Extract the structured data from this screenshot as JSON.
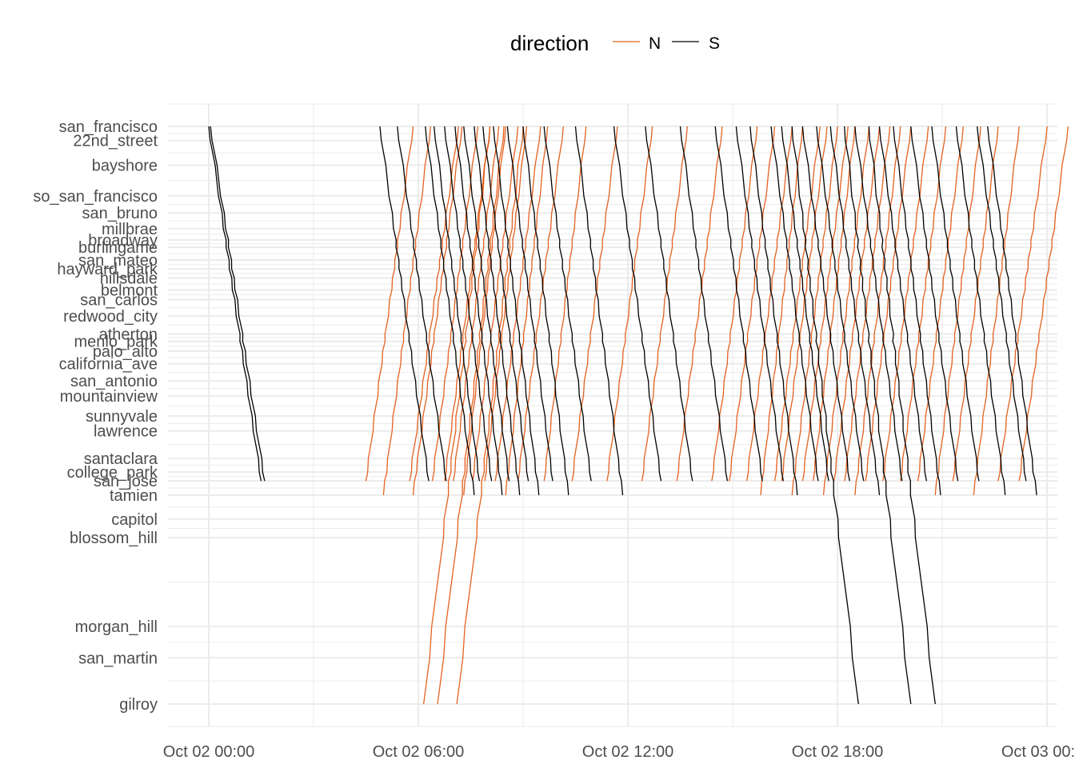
{
  "chart_data": {
    "type": "line",
    "x_ticks": [
      "Oct 02 00:00",
      "Oct 02 06:00",
      "Oct 02 12:00",
      "Oct 02 18:00",
      "Oct 03 00:00"
    ],
    "x_range_hours": [
      -1.2,
      24.1
    ],
    "legend": {
      "title": "direction",
      "entries": [
        "N",
        "S"
      ],
      "position": "top"
    },
    "colors": {
      "N": "#E4611F",
      "S": "#000000",
      "grid": "#EBEBEB",
      "label": "#4D4D4D"
    },
    "grid": true,
    "stations": [
      {
        "name": "san_francisco",
        "pos": 0
      },
      {
        "name": "22nd_street",
        "pos": 1.9
      },
      {
        "name": "bayshore",
        "pos": 5.2
      },
      {
        "name": "so_san_francisco",
        "pos": 9.3
      },
      {
        "name": "san_bruno",
        "pos": 11.6
      },
      {
        "name": "millbrae",
        "pos": 13.7
      },
      {
        "name": "broadway",
        "pos": 15.2
      },
      {
        "name": "burlingame",
        "pos": 16.2
      },
      {
        "name": "san_mateo",
        "pos": 17.9
      },
      {
        "name": "hayward_park",
        "pos": 19.1
      },
      {
        "name": "hillsdale",
        "pos": 20.3
      },
      {
        "name": "belmont",
        "pos": 21.9
      },
      {
        "name": "san_carlos",
        "pos": 23.2
      },
      {
        "name": "redwood_city",
        "pos": 25.4
      },
      {
        "name": "atherton",
        "pos": 27.8
      },
      {
        "name": "menlo_park",
        "pos": 28.8
      },
      {
        "name": "palo_alto",
        "pos": 30.1
      },
      {
        "name": "california_ave",
        "pos": 31.8
      },
      {
        "name": "san_antonio",
        "pos": 34.1
      },
      {
        "name": "mountainview",
        "pos": 36.1
      },
      {
        "name": "sunnyvale",
        "pos": 38.8
      },
      {
        "name": "lawrence",
        "pos": 40.8
      },
      {
        "name": "santaclara",
        "pos": 44.5
      },
      {
        "name": "college_park",
        "pos": 46.3
      },
      {
        "name": "san_jose",
        "pos": 47.5
      },
      {
        "name": "tamien",
        "pos": 49.4
      },
      {
        "name": "capitol",
        "pos": 52.6
      },
      {
        "name": "blossom_hill",
        "pos": 55.1
      },
      {
        "name": "morgan_hill",
        "pos": 67.0
      },
      {
        "name": "san_martin",
        "pos": 71.2
      },
      {
        "name": "gilroy",
        "pos": 77.4
      }
    ],
    "series": [
      {
        "name": "N",
        "trips": [
          {
            "t0": 4.5,
            "d": 1.35,
            "to": "san_jose"
          },
          {
            "t0": 5.0,
            "d": 1.35,
            "to": "tamien"
          },
          {
            "t0": 5.75,
            "d": 1.4,
            "to": "san_jose"
          },
          {
            "t0": 5.85,
            "d": 1.4,
            "to": "tamien"
          },
          {
            "t0": 6.15,
            "d": 1.9,
            "to": "gilroy"
          },
          {
            "t0": 6.55,
            "d": 1.9,
            "to": "gilroy"
          },
          {
            "t0": 7.1,
            "d": 1.9,
            "to": "gilroy"
          },
          {
            "t0": 6.4,
            "d": 1.3,
            "to": "san_jose"
          },
          {
            "t0": 6.75,
            "d": 1.3,
            "to": "san_jose"
          },
          {
            "t0": 7.0,
            "d": 1.3,
            "to": "san_jose"
          },
          {
            "t0": 7.3,
            "d": 1.2,
            "to": "tamien"
          },
          {
            "t0": 7.55,
            "d": 1.3,
            "to": "san_jose"
          },
          {
            "t0": 7.9,
            "d": 1.2,
            "to": "san_jose"
          },
          {
            "t0": 8.2,
            "d": 1.3,
            "to": "san_jose"
          },
          {
            "t0": 8.5,
            "d": 1.2,
            "to": "tamien"
          },
          {
            "t0": 8.85,
            "d": 1.3,
            "to": "san_jose"
          },
          {
            "t0": 9.6,
            "d": 1.2,
            "to": "san_jose"
          },
          {
            "t0": 10.4,
            "d": 1.3,
            "to": "san_jose"
          },
          {
            "t0": 11.4,
            "d": 1.3,
            "to": "san_jose"
          },
          {
            "t0": 12.4,
            "d": 1.3,
            "to": "san_jose"
          },
          {
            "t0": 13.4,
            "d": 1.3,
            "to": "san_jose"
          },
          {
            "t0": 14.4,
            "d": 1.3,
            "to": "san_jose"
          },
          {
            "t0": 14.9,
            "d": 1.3,
            "to": "san_jose"
          },
          {
            "t0": 15.4,
            "d": 1.3,
            "to": "san_jose"
          },
          {
            "t0": 15.8,
            "d": 1.2,
            "to": "tamien"
          },
          {
            "t0": 16.2,
            "d": 1.3,
            "to": "san_jose"
          },
          {
            "t0": 16.4,
            "d": 1.3,
            "to": "san_jose"
          },
          {
            "t0": 16.7,
            "d": 1.3,
            "to": "tamien"
          },
          {
            "t0": 17.0,
            "d": 1.3,
            "to": "san_jose"
          },
          {
            "t0": 17.3,
            "d": 1.2,
            "to": "san_jose"
          },
          {
            "t0": 17.6,
            "d": 1.3,
            "to": "tamien"
          },
          {
            "t0": 17.9,
            "d": 1.3,
            "to": "san_jose"
          },
          {
            "t0": 18.2,
            "d": 1.3,
            "to": "san_jose"
          },
          {
            "t0": 18.5,
            "d": 1.3,
            "to": "tamien"
          },
          {
            "t0": 18.8,
            "d": 1.3,
            "to": "san_jose"
          },
          {
            "t0": 19.3,
            "d": 1.3,
            "to": "san_jose"
          },
          {
            "t0": 19.8,
            "d": 1.3,
            "to": "san_jose"
          },
          {
            "t0": 20.3,
            "d": 1.3,
            "to": "san_jose"
          },
          {
            "t0": 20.8,
            "d": 1.3,
            "to": "tamien"
          },
          {
            "t0": 21.3,
            "d": 1.3,
            "to": "san_jose"
          },
          {
            "t0": 21.9,
            "d": 1.3,
            "to": "tamien"
          },
          {
            "t0": 22.6,
            "d": 1.4,
            "to": "san_jose"
          },
          {
            "t0": 23.2,
            "d": 1.4,
            "to": "san_jose"
          }
        ]
      },
      {
        "name": "S",
        "trips": [
          {
            "t0": 0.0,
            "d": 1.5,
            "to": "san_jose"
          },
          {
            "t0": 0.05,
            "d": 1.55,
            "to": "san_jose"
          },
          {
            "t0": 4.9,
            "d": 1.4,
            "to": "san_jose"
          },
          {
            "t0": 5.4,
            "d": 1.4,
            "to": "san_jose"
          },
          {
            "t0": 6.2,
            "d": 1.4,
            "to": "tamien"
          },
          {
            "t0": 6.45,
            "d": 1.3,
            "to": "san_jose"
          },
          {
            "t0": 6.75,
            "d": 1.35,
            "to": "san_jose"
          },
          {
            "t0": 7.05,
            "d": 1.35,
            "to": "tamien"
          },
          {
            "t0": 7.3,
            "d": 1.3,
            "to": "san_jose"
          },
          {
            "t0": 7.6,
            "d": 1.3,
            "to": "tamien"
          },
          {
            "t0": 7.85,
            "d": 1.3,
            "to": "san_jose"
          },
          {
            "t0": 8.15,
            "d": 1.3,
            "to": "tamien"
          },
          {
            "t0": 8.55,
            "d": 1.3,
            "to": "san_jose"
          },
          {
            "t0": 9.0,
            "d": 1.3,
            "to": "tamien"
          },
          {
            "t0": 9.6,
            "d": 1.35,
            "to": "san_jose"
          },
          {
            "t0": 10.5,
            "d": 1.35,
            "to": "tamien"
          },
          {
            "t0": 11.6,
            "d": 1.35,
            "to": "san_jose"
          },
          {
            "t0": 12.5,
            "d": 1.35,
            "to": "san_jose"
          },
          {
            "t0": 13.5,
            "d": 1.35,
            "to": "san_jose"
          },
          {
            "t0": 14.5,
            "d": 1.35,
            "to": "san_jose"
          },
          {
            "t0": 15.1,
            "d": 1.35,
            "to": "san_jose"
          },
          {
            "t0": 15.5,
            "d": 1.35,
            "to": "tamien"
          },
          {
            "t0": 16.1,
            "d": 1.35,
            "to": "san_jose"
          },
          {
            "t0": 16.4,
            "d": 1.35,
            "to": "san_jose"
          },
          {
            "t0": 16.7,
            "d": 1.9,
            "to": "gilroy"
          },
          {
            "t0": 17.0,
            "d": 1.35,
            "to": "san_jose"
          },
          {
            "t0": 17.4,
            "d": 1.35,
            "to": "san_jose"
          },
          {
            "t0": 17.8,
            "d": 1.4,
            "to": "tamien"
          },
          {
            "t0": 18.2,
            "d": 1.9,
            "to": "gilroy"
          },
          {
            "t0": 18.5,
            "d": 1.35,
            "to": "san_jose"
          },
          {
            "t0": 18.9,
            "d": 1.9,
            "to": "gilroy"
          },
          {
            "t0": 19.2,
            "d": 1.35,
            "to": "san_jose"
          },
          {
            "t0": 19.6,
            "d": 1.35,
            "to": "tamien"
          },
          {
            "t0": 20.1,
            "d": 1.35,
            "to": "san_jose"
          },
          {
            "t0": 20.7,
            "d": 1.35,
            "to": "san_jose"
          },
          {
            "t0": 21.4,
            "d": 1.4,
            "to": "tamien"
          },
          {
            "t0": 22.0,
            "d": 1.4,
            "to": "san_jose"
          },
          {
            "t0": 22.3,
            "d": 1.4,
            "to": "tamien"
          }
        ]
      }
    ]
  }
}
